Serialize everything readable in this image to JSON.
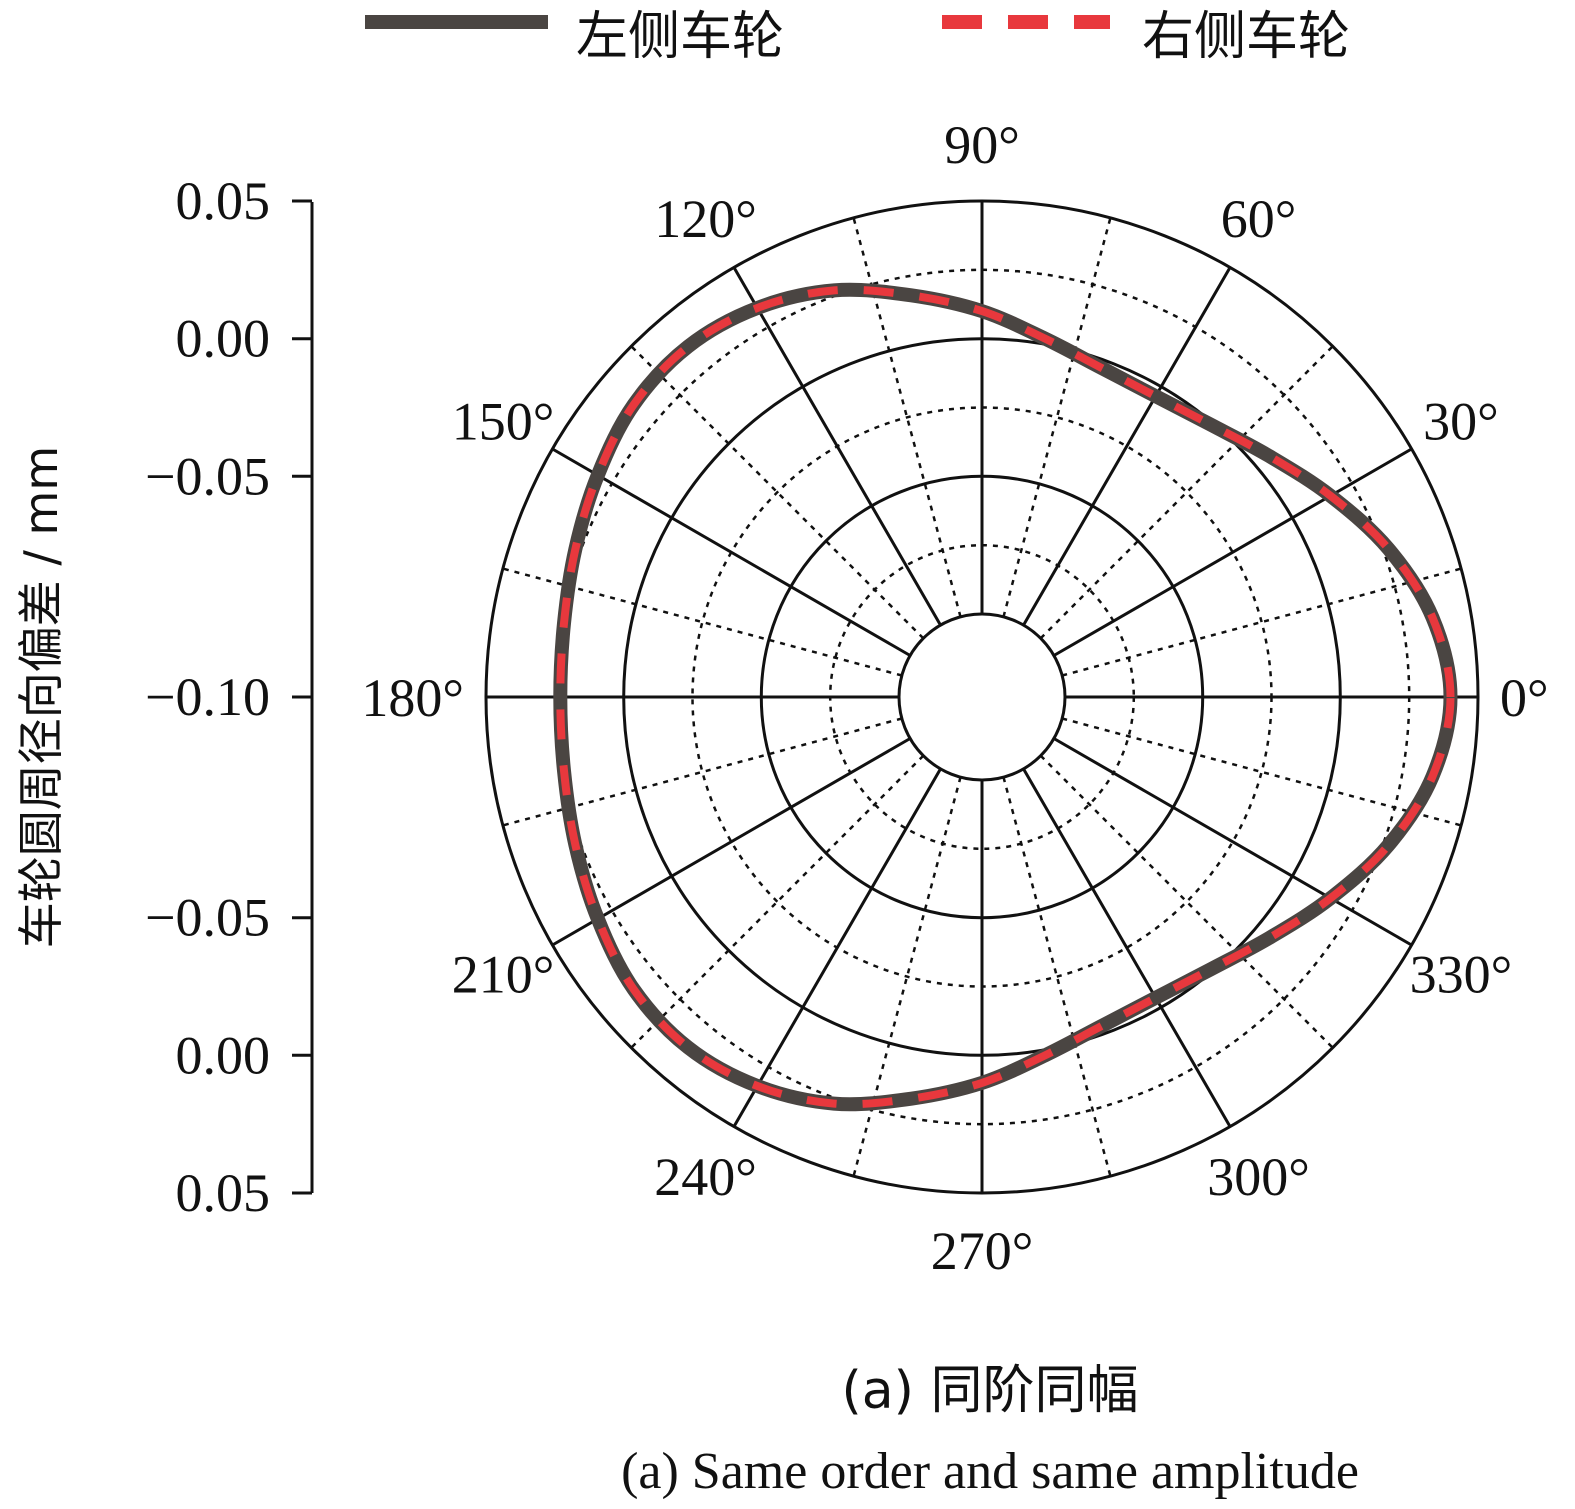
{
  "legend": {
    "left_label": "左侧车轮",
    "right_label": "右侧车轮"
  },
  "caption": {
    "line1": "(a) 同阶同幅",
    "line2": "(a) Same order and same amplitude"
  },
  "colors": {
    "left_series": "#4a4542",
    "right_series": "#e8383d",
    "axis": "#111111"
  },
  "chart_data": {
    "type": "line",
    "projection": "polar",
    "angle_unit": "degree",
    "angle_ticks": [
      "0°",
      "30°",
      "60°",
      "90°",
      "120°",
      "150°",
      "180°",
      "210°",
      "240°",
      "270°",
      "300°",
      "330°"
    ],
    "radial_axis": {
      "label": "车轮圆周径向偏差 / mm",
      "ticks": [
        "0.05",
        "0.00",
        "−0.05",
        "−0.10",
        "−0.05",
        "0.00",
        "0.05"
      ],
      "rlim": [
        -0.1,
        0.05
      ]
    },
    "series": [
      {
        "name": "左侧车轮",
        "line_style": "solid",
        "theta": [
          0,
          10,
          20,
          30,
          40,
          50,
          60,
          70,
          80,
          90,
          100,
          110,
          120,
          130,
          140,
          150,
          160,
          170,
          180,
          190,
          200,
          210,
          220,
          230,
          240,
          250,
          260,
          270,
          280,
          290,
          300,
          310,
          320,
          330,
          340,
          350,
          360
        ],
        "r": [
          0.04,
          0.036,
          0.027,
          0.016,
          0.006,
          -0.001,
          -0.004,
          -0.003,
          0.002,
          0.01,
          0.018,
          0.027,
          0.033,
          0.036,
          0.035,
          0.031,
          0.027,
          0.024,
          0.023,
          0.024,
          0.027,
          0.031,
          0.035,
          0.036,
          0.033,
          0.027,
          0.018,
          0.01,
          0.002,
          -0.003,
          -0.004,
          -0.001,
          0.006,
          0.016,
          0.027,
          0.036,
          0.04
        ]
      },
      {
        "name": "右侧车轮",
        "line_style": "dashed",
        "theta": [
          0,
          10,
          20,
          30,
          40,
          50,
          60,
          70,
          80,
          90,
          100,
          110,
          120,
          130,
          140,
          150,
          160,
          170,
          180,
          190,
          200,
          210,
          220,
          230,
          240,
          250,
          260,
          270,
          280,
          290,
          300,
          310,
          320,
          330,
          340,
          350,
          360
        ],
        "r": [
          0.04,
          0.036,
          0.027,
          0.016,
          0.006,
          -0.001,
          -0.004,
          -0.003,
          0.002,
          0.01,
          0.018,
          0.027,
          0.033,
          0.036,
          0.035,
          0.031,
          0.027,
          0.024,
          0.023,
          0.024,
          0.027,
          0.031,
          0.035,
          0.036,
          0.033,
          0.027,
          0.018,
          0.01,
          0.002,
          -0.003,
          -0.004,
          -0.001,
          0.006,
          0.016,
          0.027,
          0.036,
          0.04
        ]
      }
    ],
    "grid": true,
    "legend_position": "top"
  }
}
